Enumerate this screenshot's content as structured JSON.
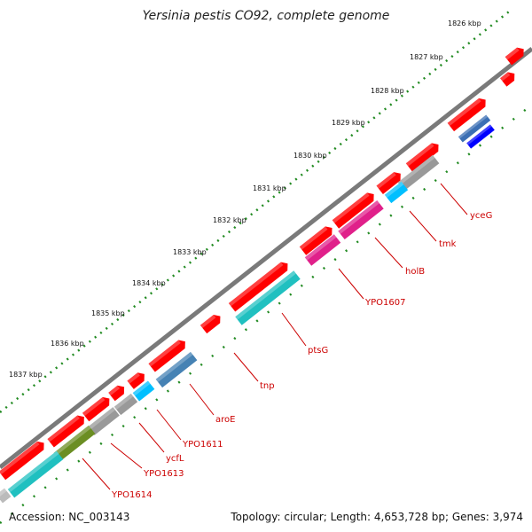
{
  "title": "Yersinia pestis CO92, complete genome",
  "accession": "Accession: NC_003143",
  "summary": "Topology: circular; Length: 4,653,728 bp; Genes: 3,974",
  "ruler": [
    "1826 kbp",
    "1827 kbp",
    "1828 kbp",
    "1829 kbp",
    "1830 kbp",
    "1831 kbp",
    "1832 kbp",
    "1833 kbp",
    "1834 kbp",
    "1835 kbp",
    "1836 kbp",
    "1837 kbp"
  ],
  "genes": [
    {
      "label": "yceG",
      "color": "#999999"
    },
    {
      "label": "tmk",
      "color": "#00bfff"
    },
    {
      "label": "holB",
      "color": "#e0208a"
    },
    {
      "label": "YPO1607",
      "color": "#e0208a"
    },
    {
      "label": "ptsG",
      "color": "#20c0c0"
    },
    {
      "label": "tnp",
      "color": "#ff0000"
    },
    {
      "label": "aroE",
      "color": "#4682b4"
    },
    {
      "label": "YPO1611",
      "color": "#00bfff"
    },
    {
      "label": "ycfL",
      "color": "#999999"
    },
    {
      "label": "YPO1613",
      "color": "#999999"
    },
    {
      "label": "YPO1614",
      "color": "#6b8e23"
    }
  ],
  "colors": {
    "cds": "#ff0000",
    "backbone": "#777777",
    "ticks": "#228b22",
    "label": "#cc0000"
  }
}
